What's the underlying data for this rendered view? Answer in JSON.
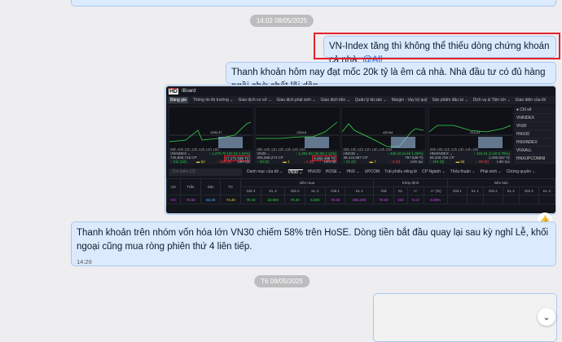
{
  "chat": {
    "date_separator_1": "14:02 08/05/2025",
    "msg_highlighted": {
      "text": "VN-Index tăng thì không thể thiếu dòng chứng khoán cả nhà.",
      "mention": "@All"
    },
    "msg_2": "Thanh khoản hôm nay đạt mốc 20k tỷ là êm cả nhà. Nhà đầu tư có đủ hàng ngồi chờ chốt lãi dần.",
    "msg_3": {
      "text": "Thanh khoản trên nhóm vốn hóa lớn VN30 chiếm 58% trên HoSE. Dòng tiền bắt đầu quay lại sau kỳ nghỉ Lễ, khối ngoại cũng mua ròng phiên thứ 4 liên tiếp.",
      "time": "14:26"
    },
    "date_separator_2": "T6 09/05/2025",
    "like_icon": "thumbs-up-icon",
    "scroll_icon": "chevron-down-icon",
    "highlight_color": "#e3222c"
  },
  "board": {
    "logo": "HD",
    "app": "iBoard",
    "menu": [
      "Bảng giá",
      "Thông tin thị trường ⌄",
      "Giao dịch cơ sở ⌄",
      "Giao dịch phái sinh ⌄",
      "Giao dịch tiền ⌄",
      "Quản lý tài sản ⌄",
      "Margin - Vay ký quỹ",
      "Sản phẩm đầu tư ⌄",
      "Dịch vụ & Tiện ích ⌄",
      "Giao diện của tôi"
    ],
    "hours": "09h 10h 11h 12h 13h 14h 15h",
    "panels": [
      {
        "name": "VNINDEX ⌄",
        "value": "↑ 1,270.70 (20.33 1.63%)",
        "volume": "726,809,715 CP",
        "turnover": "17,171.036 Tỷ",
        "up": "↑ 211 (10)",
        "ref": "▬ 52",
        "down": "↓ 106 (2)",
        "status": "Liên tục",
        "mid": "1250.37"
      },
      {
        "name": "VN30 ⌄",
        "value": "↑ 1,352.89 (28.09 2.12%)",
        "volume": "305,698,274 CP",
        "turnover": "9,262.498 Tỷ",
        "up": "↑ 28 (2)",
        "ref": "▬ 1",
        "down": "↓ 1 (0)",
        "status": "Liên tục",
        "mid": "1324.8"
      },
      {
        "name": "HNX30 ⌄",
        "value": "↑ 425.10 (4.46 1.06%)",
        "volume": "38,143,967 CP",
        "turnover": "797.638 Tỷ",
        "up": "↑ 21 (0)",
        "ref": "▬ 7",
        "down": "↓ 2 (0)",
        "status": "Liên tục",
        "mid": "420.64"
      },
      {
        "name": "HNXINDEX ⌄",
        "value": "↑ 215.01 (1.60 0.75%)",
        "volume": "59,329,766 CP",
        "turnover": "1,036.932 Tỷ",
        "up": "↑ 101 (9)",
        "ref": "▬ 56",
        "down": "↓ 60 (5)",
        "status": "Liên tục",
        "mid": "213.41"
      }
    ],
    "index_list": [
      "● Chỉ số",
      "VNINDEX",
      "VN30",
      "HNX30",
      "HNXINDEX",
      "VNXALL",
      "HNXUPCOMINI"
    ],
    "search_placeholder": "Tìm kiếm CK",
    "tabs": [
      "Danh mục của tôi ⌄",
      "VN30 ⌄",
      "HNX30",
      "HOSE ⌄",
      "HNX ⌄",
      "UPCOM",
      "Trái phiếu riêng lẻ",
      "CP Ngành ⌄",
      "Thỏa thuận ⌄",
      "Phái sinh ⌄",
      "Chứng quyền ⌄"
    ],
    "table": {
      "groups": [
        "CK",
        "Trần",
        "Sàn",
        "TC",
        "Bên mua",
        "Khớp lệnh",
        "Bên bán"
      ],
      "sub": [
        "Giá 3",
        "KL 3",
        "Giá 2",
        "KL 2",
        "Giá 1",
        "KL 1",
        "Giá",
        "KL",
        "+/-",
        "+/- (%)",
        "Giá 1",
        "KL 1",
        "Giá 2",
        "KL 2",
        "Giá 3",
        "KL 3"
      ],
      "row": [
        "VIC",
        "78.50",
        "68.30",
        "73.40",
        "78.30",
        "10,800",
        "78.40",
        "5,800",
        "78.50",
        "655,300",
        "78.50",
        "100",
        "5.10",
        "6.95%"
      ]
    }
  }
}
